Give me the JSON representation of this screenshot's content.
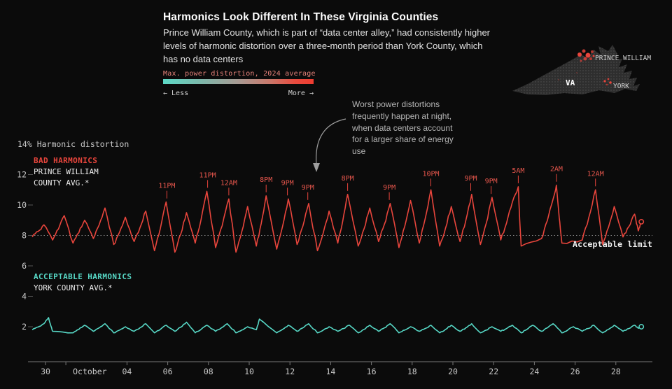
{
  "header": {
    "title": "Harmonics Look Different In These Virginia Counties",
    "subtitle": "Prince William County, which is part of “data center alley,” had consistently higher levels of harmonic distortion over a three-month period than York County, which has no data centers"
  },
  "legend": {
    "label": "Max. power distortion, 2024 average",
    "less": "← Less",
    "more": "More →",
    "gradient": [
      "#5cd9c6",
      "#a89a93",
      "#ee3c30"
    ]
  },
  "map": {
    "state_label": "VA",
    "prince_william_label": "PRINCE WILLIAM",
    "york_label": "YORK",
    "highlight_color": "#e8453c"
  },
  "annotation": {
    "text": "Worst power distortions frequently happen at night, when data centers account for a larger share of energy use"
  },
  "series_labels": {
    "bad_title": "BAD HARMONICS",
    "bad_name": "PRINCE WILLIAM COUNTY AVG.*",
    "good_title": "ACCEPTABLE HARMONICS",
    "good_name": "YORK COUNTY AVG.*"
  },
  "limit_label": "Acceptable limit",
  "y_axis": {
    "top_label": "14% Harmonic distortion",
    "ticks": [
      {
        "v": 12,
        "label": "12"
      },
      {
        "v": 10,
        "label": "10"
      },
      {
        "v": 8,
        "label": "8"
      },
      {
        "v": 6,
        "label": "6"
      },
      {
        "v": 4,
        "label": "4"
      },
      {
        "v": 2,
        "label": "2"
      }
    ]
  },
  "x_axis": {
    "ticks": [
      {
        "d": 0,
        "label": "30"
      },
      {
        "d": 1,
        "label": "October",
        "anchor": "start"
      },
      {
        "d": 4,
        "label": "04"
      },
      {
        "d": 6,
        "label": "06"
      },
      {
        "d": 8,
        "label": "08"
      },
      {
        "d": 10,
        "label": "10"
      },
      {
        "d": 12,
        "label": "12"
      },
      {
        "d": 14,
        "label": "14"
      },
      {
        "d": 16,
        "label": "16"
      },
      {
        "d": 18,
        "label": "18"
      },
      {
        "d": 20,
        "label": "20"
      },
      {
        "d": 22,
        "label": "22"
      },
      {
        "d": 24,
        "label": "24"
      },
      {
        "d": 26,
        "label": "26"
      },
      {
        "d": 28,
        "label": "28"
      }
    ]
  },
  "chart_data": {
    "type": "line",
    "title": "Harmonic distortion, Sep 30 – Oct 29",
    "ylabel": "Harmonic distortion (%)",
    "ylim": [
      0,
      14
    ],
    "acceptable_limit": 8,
    "x_unit": "days since Sep 30 (x-axis dates are October days)",
    "series": [
      {
        "id": "prince_william",
        "name": "Prince William County avg.",
        "color": "#e8453c",
        "daily": [
          {
            "d": -1,
            "trough": 7.9,
            "peak": 8.7
          },
          {
            "d": 0,
            "trough": 7.7,
            "peak": 9.3
          },
          {
            "d": 1,
            "trough": 7.5,
            "peak": 9.0
          },
          {
            "d": 2,
            "trough": 7.8,
            "peak": 9.8
          },
          {
            "d": 3,
            "trough": 7.4,
            "peak": 9.2
          },
          {
            "d": 4,
            "trough": 7.6,
            "peak": 9.6
          },
          {
            "d": 5,
            "trough": 7.0,
            "peak": 10.2
          },
          {
            "d": 6,
            "trough": 6.9,
            "peak": 9.5
          },
          {
            "d": 7,
            "trough": 7.5,
            "peak": 10.9
          },
          {
            "d": 8,
            "trough": 7.2,
            "peak": 10.4,
            "pt": 1.0
          },
          {
            "d": 9,
            "trough": 6.9,
            "peak": 9.9
          },
          {
            "d": 10,
            "trough": 7.3,
            "peak": 10.6,
            "pt": 0.83
          },
          {
            "d": 11,
            "trough": 7.1,
            "peak": 10.4
          },
          {
            "d": 12,
            "trough": 7.4,
            "peak": 10.1
          },
          {
            "d": 13,
            "trough": 7.0,
            "peak": 9.6
          },
          {
            "d": 14,
            "trough": 7.5,
            "peak": 10.7,
            "pt": 0.83
          },
          {
            "d": 15,
            "trough": 7.3,
            "peak": 9.8
          },
          {
            "d": 16,
            "trough": 7.6,
            "peak": 10.1
          },
          {
            "d": 17,
            "trough": 7.2,
            "peak": 10.3
          },
          {
            "d": 18,
            "trough": 7.5,
            "peak": 11.0
          },
          {
            "d": 19,
            "trough": 7.3,
            "peak": 9.9
          },
          {
            "d": 20,
            "trough": 7.6,
            "peak": 10.7
          },
          {
            "d": 21,
            "trough": 7.4,
            "peak": 10.5
          },
          {
            "d": 22,
            "trough": 7.7,
            "peak": 10.2
          },
          {
            "d": 23,
            "trough": 7.3,
            "peak": 11.2,
            "pt": 0.21
          },
          {
            "d": 24,
            "trough": 7.8,
            "peak": 10.4
          },
          {
            "d": 25,
            "trough": 7.5,
            "peak": 11.3,
            "pt": 0.08
          },
          {
            "d": 26,
            "trough": 7.7,
            "peak": 11.0,
            "pt": 1.0
          },
          {
            "d": 27,
            "trough": 7.4,
            "peak": 9.9
          },
          {
            "d": 28,
            "trough": 7.9,
            "peak": 9.4
          },
          {
            "d": 29,
            "trough": 8.3,
            "peak": 8.9,
            "tt": 0.1,
            "pt": 0.25
          }
        ]
      },
      {
        "id": "york",
        "name": "York County avg.",
        "color": "#57d8c6",
        "daily": [
          {
            "d": -1,
            "trough": 1.8,
            "peak": 2.2
          },
          {
            "d": 0,
            "trough": 1.7,
            "peak": 2.6,
            "pt": 0.15
          },
          {
            "d": 1,
            "trough": 1.6,
            "peak": 2.1
          },
          {
            "d": 2,
            "trough": 1.7,
            "peak": 2.2
          },
          {
            "d": 3,
            "trough": 1.6,
            "peak": 2.0
          },
          {
            "d": 4,
            "trough": 1.7,
            "peak": 2.2
          },
          {
            "d": 5,
            "trough": 1.6,
            "peak": 2.1
          },
          {
            "d": 6,
            "trough": 1.7,
            "peak": 2.3
          },
          {
            "d": 7,
            "trough": 1.6,
            "peak": 2.1
          },
          {
            "d": 8,
            "trough": 1.7,
            "peak": 2.2
          },
          {
            "d": 9,
            "trough": 1.6,
            "peak": 2.0
          },
          {
            "d": 10,
            "trough": 1.8,
            "peak": 2.5,
            "pt": 0.5
          },
          {
            "d": 11,
            "trough": 1.6,
            "peak": 2.1
          },
          {
            "d": 12,
            "trough": 1.7,
            "peak": 2.2
          },
          {
            "d": 13,
            "trough": 1.6,
            "peak": 2.0
          },
          {
            "d": 14,
            "trough": 1.7,
            "peak": 2.1
          },
          {
            "d": 15,
            "trough": 1.6,
            "peak": 2.1
          },
          {
            "d": 16,
            "trough": 1.7,
            "peak": 2.2
          },
          {
            "d": 17,
            "trough": 1.6,
            "peak": 2.0
          },
          {
            "d": 18,
            "trough": 1.7,
            "peak": 2.1
          },
          {
            "d": 19,
            "trough": 1.6,
            "peak": 2.1
          },
          {
            "d": 20,
            "trough": 1.7,
            "peak": 2.2
          },
          {
            "d": 21,
            "trough": 1.6,
            "peak": 2.0
          },
          {
            "d": 22,
            "trough": 1.7,
            "peak": 2.1
          },
          {
            "d": 23,
            "trough": 1.6,
            "peak": 2.1
          },
          {
            "d": 24,
            "trough": 1.7,
            "peak": 2.2
          },
          {
            "d": 25,
            "trough": 1.6,
            "peak": 2.0
          },
          {
            "d": 26,
            "trough": 1.7,
            "peak": 2.1
          },
          {
            "d": 27,
            "trough": 1.6,
            "peak": 2.1
          },
          {
            "d": 28,
            "trough": 1.7,
            "peak": 2.1
          },
          {
            "d": 29,
            "trough": 1.9,
            "peak": 2.0,
            "tt": 0.1,
            "pt": 0.25
          }
        ]
      }
    ],
    "peak_time_labels": [
      {
        "label": "11PM",
        "d": 5.958,
        "value": 10.2
      },
      {
        "label": "11PM",
        "d": 7.958,
        "value": 10.9
      },
      {
        "label": "12AM",
        "d": 9.0,
        "value": 10.4
      },
      {
        "label": "8PM",
        "d": 10.833,
        "value": 10.6
      },
      {
        "label": "9PM",
        "d": 11.875,
        "value": 10.4
      },
      {
        "label": "9PM",
        "d": 12.875,
        "value": 10.1
      },
      {
        "label": "8PM",
        "d": 14.833,
        "value": 10.7
      },
      {
        "label": "9PM",
        "d": 16.875,
        "value": 10.1
      },
      {
        "label": "10PM",
        "d": 18.917,
        "value": 11.0
      },
      {
        "label": "9PM",
        "d": 20.875,
        "value": 10.7
      },
      {
        "label": "9PM",
        "d": 21.875,
        "value": 10.5
      },
      {
        "label": "5AM",
        "d": 23.208,
        "value": 11.2
      },
      {
        "label": "2AM",
        "d": 25.083,
        "value": 11.3
      },
      {
        "label": "12AM",
        "d": 27.0,
        "value": 11.0
      }
    ]
  }
}
